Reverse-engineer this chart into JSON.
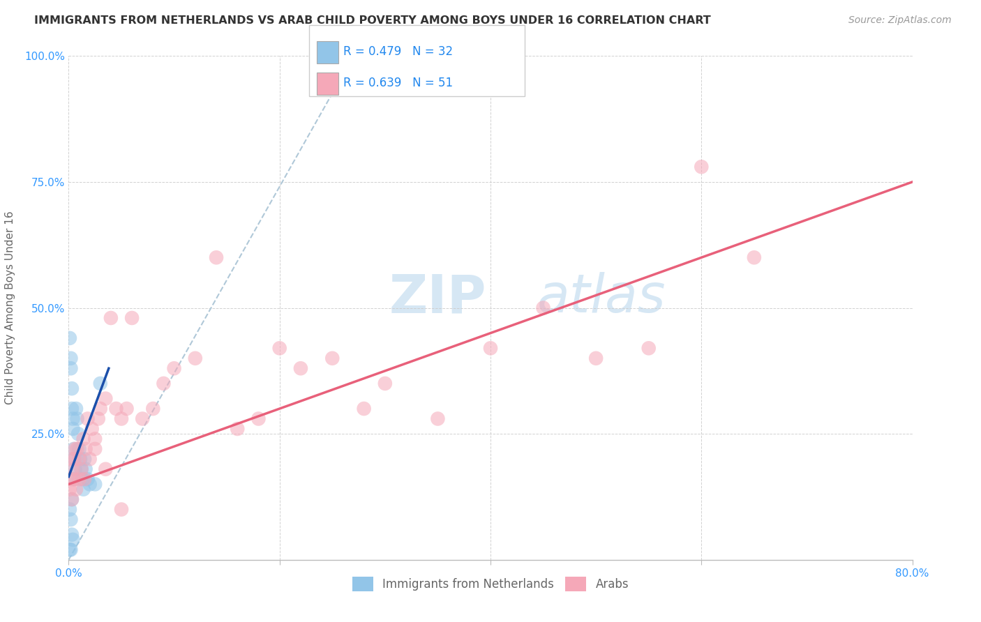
{
  "title": "IMMIGRANTS FROM NETHERLANDS VS ARAB CHILD POVERTY AMONG BOYS UNDER 16 CORRELATION CHART",
  "source": "Source: ZipAtlas.com",
  "ylabel": "Child Poverty Among Boys Under 16",
  "xlim": [
    0.0,
    0.8
  ],
  "ylim": [
    0.0,
    1.0
  ],
  "xticks": [
    0.0,
    0.2,
    0.4,
    0.6,
    0.8
  ],
  "yticks": [
    0.0,
    0.25,
    0.5,
    0.75,
    1.0
  ],
  "xticklabels_show": [
    "0.0%",
    "",
    "",
    "",
    "80.0%"
  ],
  "yticklabels_show": [
    "",
    "25.0%",
    "50.0%",
    "75.0%",
    "100.0%"
  ],
  "legend_r1": "R = 0.479",
  "legend_n1": "N = 32",
  "legend_r2": "R = 0.639",
  "legend_n2": "N = 51",
  "legend_label1": "Immigrants from Netherlands",
  "legend_label2": "Arabs",
  "color_blue": "#92c5e8",
  "color_pink": "#f5a8b8",
  "color_blue_line": "#1a4faa",
  "color_pink_line": "#e8607a",
  "color_dashed": "#b0c8d8",
  "watermark_zip": "ZIP",
  "watermark_atlas": "atlas",
  "blue_x": [
    0.001,
    0.002,
    0.002,
    0.003,
    0.003,
    0.004,
    0.004,
    0.005,
    0.005,
    0.006,
    0.007,
    0.008,
    0.009,
    0.01,
    0.011,
    0.012,
    0.013,
    0.014,
    0.015,
    0.016,
    0.018,
    0.02,
    0.025,
    0.03,
    0.001,
    0.002,
    0.003,
    0.004,
    0.005,
    0.002,
    0.001,
    0.003
  ],
  "blue_y": [
    0.44,
    0.4,
    0.38,
    0.34,
    0.3,
    0.28,
    0.26,
    0.22,
    0.2,
    0.18,
    0.3,
    0.28,
    0.25,
    0.22,
    0.2,
    0.18,
    0.16,
    0.14,
    0.2,
    0.18,
    0.16,
    0.15,
    0.15,
    0.35,
    0.1,
    0.08,
    0.05,
    0.04,
    0.16,
    0.02,
    0.02,
    0.12
  ],
  "pink_x": [
    0.001,
    0.002,
    0.003,
    0.004,
    0.005,
    0.006,
    0.007,
    0.008,
    0.01,
    0.012,
    0.014,
    0.016,
    0.018,
    0.02,
    0.022,
    0.025,
    0.028,
    0.03,
    0.035,
    0.04,
    0.045,
    0.05,
    0.055,
    0.06,
    0.07,
    0.08,
    0.09,
    0.1,
    0.12,
    0.14,
    0.16,
    0.18,
    0.2,
    0.22,
    0.25,
    0.28,
    0.3,
    0.35,
    0.4,
    0.45,
    0.5,
    0.55,
    0.6,
    0.65,
    0.003,
    0.006,
    0.01,
    0.015,
    0.025,
    0.035,
    0.05
  ],
  "pink_y": [
    0.14,
    0.16,
    0.12,
    0.18,
    0.16,
    0.2,
    0.14,
    0.22,
    0.2,
    0.18,
    0.24,
    0.22,
    0.28,
    0.2,
    0.26,
    0.24,
    0.28,
    0.3,
    0.32,
    0.48,
    0.3,
    0.28,
    0.3,
    0.48,
    0.28,
    0.3,
    0.35,
    0.38,
    0.4,
    0.6,
    0.26,
    0.28,
    0.42,
    0.38,
    0.4,
    0.3,
    0.35,
    0.28,
    0.42,
    0.5,
    0.4,
    0.42,
    0.78,
    0.6,
    0.2,
    0.22,
    0.16,
    0.16,
    0.22,
    0.18,
    0.1
  ],
  "blue_line_x": [
    0.0,
    0.038
  ],
  "blue_line_y": [
    0.165,
    0.38
  ],
  "pink_line_x": [
    0.0,
    0.8
  ],
  "pink_line_y": [
    0.15,
    0.75
  ],
  "dash_line_x": [
    0.0,
    0.27
  ],
  "dash_line_y": [
    0.0,
    1.0
  ]
}
